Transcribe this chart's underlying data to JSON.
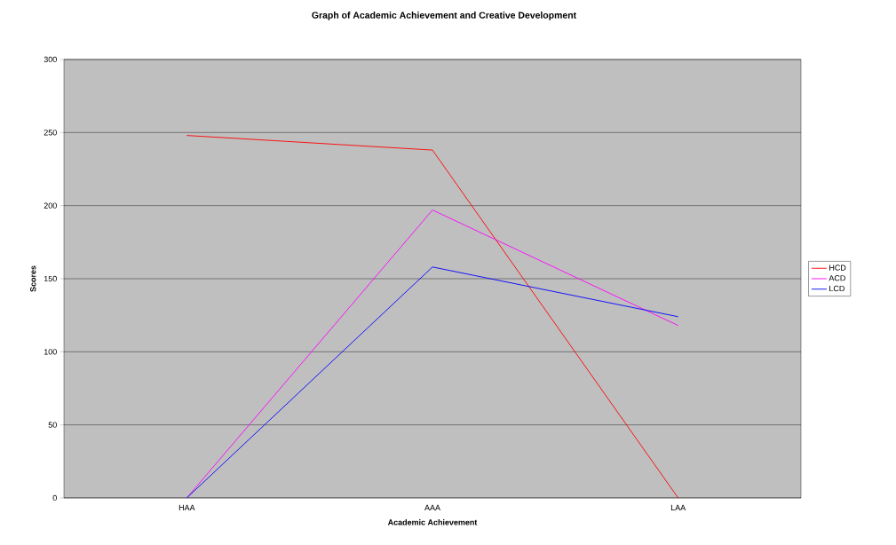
{
  "chart_data": {
    "type": "line",
    "title": "Graph of Academic Achievement and Creative Development",
    "xlabel": "Academic Achievement",
    "ylabel": "Scores",
    "categories": [
      "HAA",
      "AAA",
      "LAA"
    ],
    "series": [
      {
        "name": "HCD",
        "color": "#ff0000",
        "values": [
          248,
          238,
          0
        ]
      },
      {
        "name": "ACD",
        "color": "#ff00ff",
        "values": [
          0,
          197,
          118
        ]
      },
      {
        "name": "LCD",
        "color": "#0000ff",
        "values": [
          0,
          158,
          124
        ]
      }
    ],
    "ylim": [
      0,
      300
    ],
    "yticks": [
      0,
      50,
      100,
      150,
      200,
      250,
      300
    ],
    "grid": "y",
    "legend": "right",
    "marker": "none",
    "line_style": "solid"
  }
}
